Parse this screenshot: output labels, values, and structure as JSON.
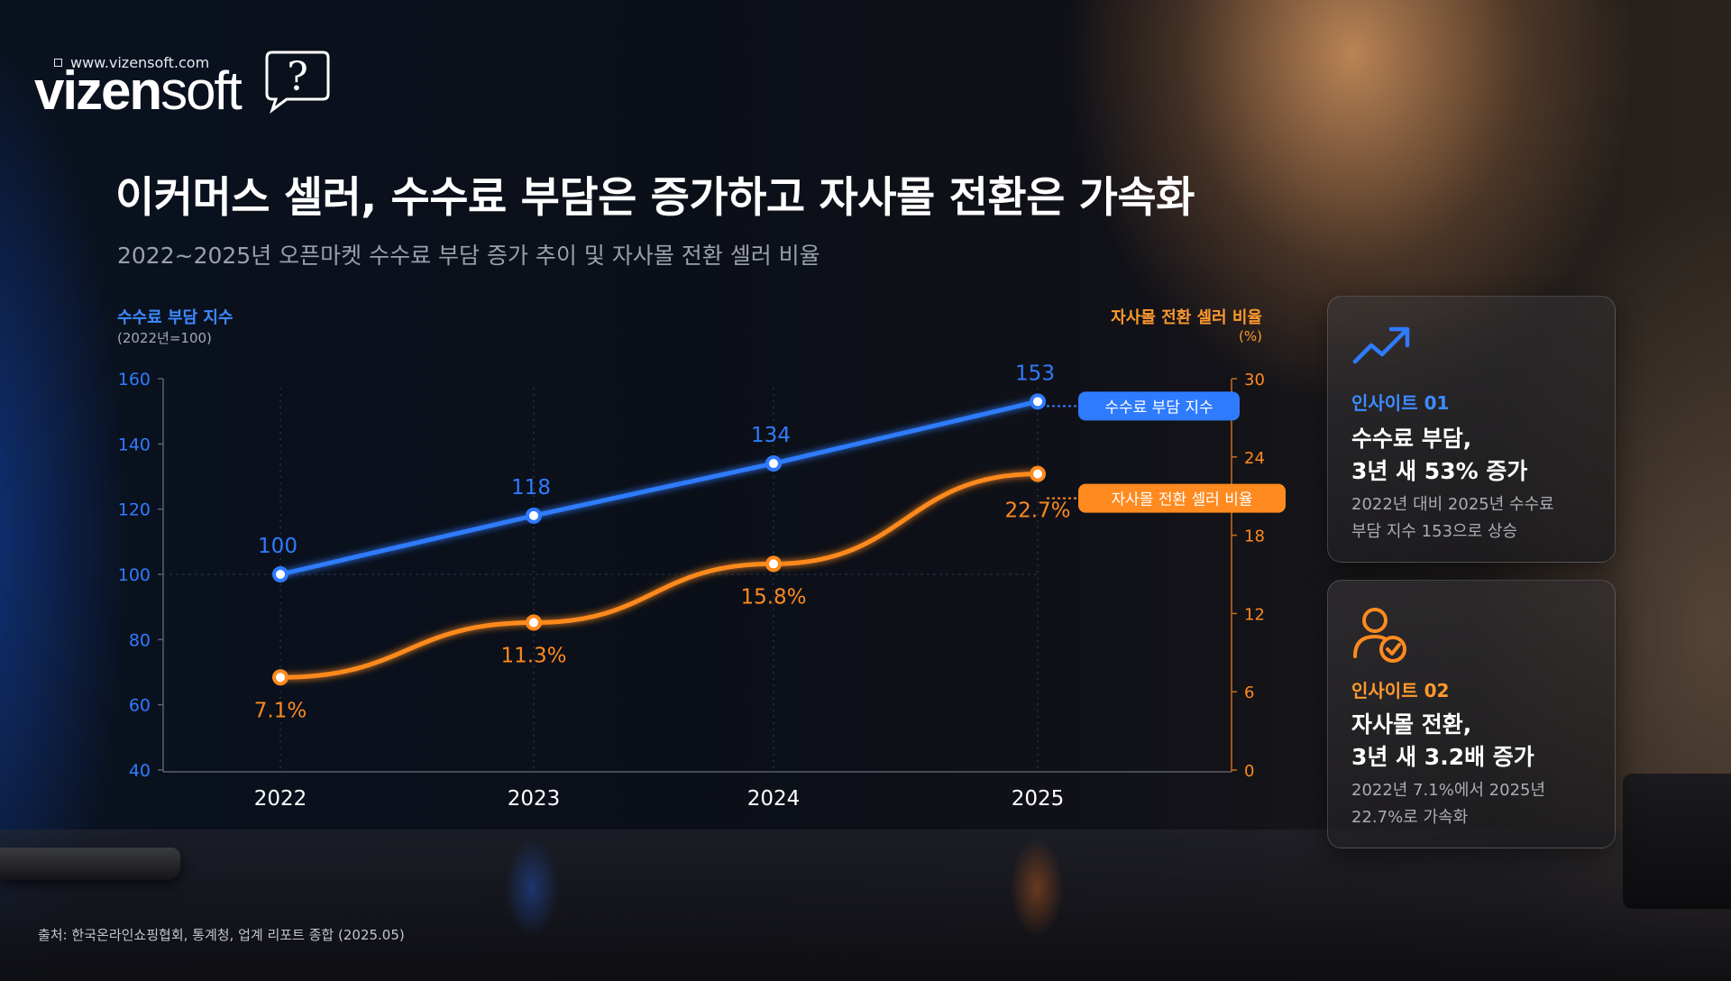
{
  "brand": {
    "url": "www.vizensoft.com",
    "word_bold": "vizen",
    "word_light": "soft",
    "mark": "?"
  },
  "title": "이커머스 셀러, 수수료 부담은 증가하고 자사몰 전환은 가속화",
  "subtitle": "2022~2025년 오픈마켓 수수료 부담 증가 추이 및 자사몰 전환 셀러 비율",
  "source": "출처: 한국온라인쇼핑협회, 통계청, 업계 리포트 종합 (2025.05)",
  "colors": {
    "blue": "#2f7bff",
    "orange": "#ff8a1f"
  },
  "chart_data": {
    "type": "line",
    "x": [
      "2022",
      "2023",
      "2024",
      "2025"
    ],
    "y_left": {
      "label": "수수료 부담 지수",
      "sublabel": "(2022년=100)",
      "ticks": [
        40,
        60,
        80,
        100,
        120,
        140,
        160
      ],
      "range": [
        40,
        160
      ]
    },
    "y_right": {
      "label": "자사몰 전환 셀러 비율",
      "sublabel": "(%)",
      "ticks": [
        0,
        6,
        12,
        18,
        24,
        30
      ],
      "range": [
        0,
        30
      ]
    },
    "series": [
      {
        "name": "수수료 부담 지수",
        "axis": "left",
        "color": "#2f7bff",
        "values": [
          100,
          118,
          134,
          153
        ],
        "labels": [
          "100",
          "118",
          "134",
          "153"
        ]
      },
      {
        "name": "자사몰 전환 셀러 비율",
        "axis": "right",
        "color": "#ff8a1f",
        "values": [
          7.1,
          11.3,
          15.8,
          22.7
        ],
        "labels": [
          "7.1%",
          "11.3%",
          "15.8%",
          "22.7%"
        ]
      }
    ],
    "grid": false,
    "legend": "inline-end-labels"
  },
  "insights": [
    {
      "tag": "인사이트 01",
      "head1": "수수료 부담,",
      "head2": "3년 새 53% 증가",
      "desc1": "2022년 대비 2025년 수수료",
      "desc2": "부담 지수 153으로 상승",
      "icon": "trend-up-icon"
    },
    {
      "tag": "인사이트 02",
      "head1": "자사몰 전환,",
      "head2": "3년 새 3.2배 증가",
      "desc1": "2022년 7.1%에서 2025년",
      "desc2": "22.7%로 가속화",
      "icon": "user-check-icon"
    }
  ]
}
